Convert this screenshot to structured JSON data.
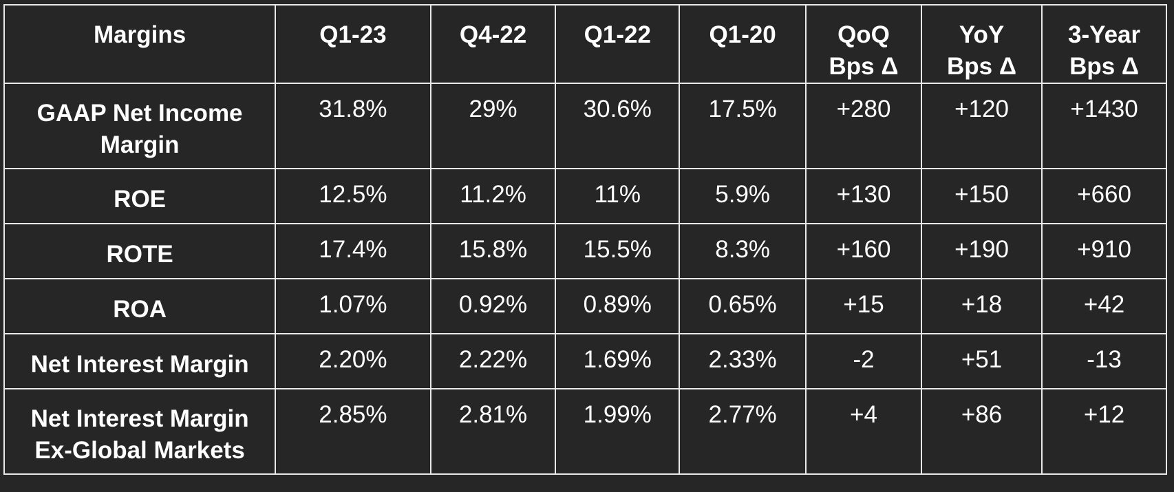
{
  "headers": [
    "Margins",
    "Q1-23",
    "Q4-22",
    "Q1-22",
    "Q1-20",
    "QoQ Bps Δ",
    "YoY Bps Δ",
    "3-Year Bps Δ"
  ],
  "header_lines": [
    [
      "Margins"
    ],
    [
      "Q1-23"
    ],
    [
      "Q4-22"
    ],
    [
      "Q1-22"
    ],
    [
      "Q1-20"
    ],
    [
      "QoQ",
      "Bps Δ"
    ],
    [
      "YoY",
      "Bps Δ"
    ],
    [
      "3-Year",
      "Bps Δ"
    ]
  ],
  "rows": [
    {
      "label": [
        "GAAP Net Income",
        "Margin"
      ],
      "values": [
        "31.8%",
        "29%",
        "30.6%",
        "17.5%",
        "+280",
        "+120",
        "+1430"
      ]
    },
    {
      "label": [
        "ROE"
      ],
      "values": [
        "12.5%",
        "11.2%",
        "11%",
        "5.9%",
        "+130",
        "+150",
        "+660"
      ]
    },
    {
      "label": [
        "ROTE"
      ],
      "values": [
        "17.4%",
        "15.8%",
        "15.5%",
        "8.3%",
        "+160",
        "+190",
        "+910"
      ]
    },
    {
      "label": [
        "ROA"
      ],
      "values": [
        "1.07%",
        "0.92%",
        "0.89%",
        "0.65%",
        "+15",
        "+18",
        "+42"
      ]
    },
    {
      "label": [
        "Net Interest Margin"
      ],
      "values": [
        "2.20%",
        "2.22%",
        "1.69%",
        "2.33%",
        "-2",
        "+51",
        "-13"
      ]
    },
    {
      "label": [
        "Net Interest Margin",
        "Ex-Global Markets"
      ],
      "values": [
        "2.85%",
        "2.81%",
        "1.99%",
        "2.77%",
        "+4",
        "+86",
        "+12"
      ]
    }
  ],
  "colors": {
    "background": "#262626",
    "grid": "#e9e9e9",
    "text": "#ffffff"
  }
}
